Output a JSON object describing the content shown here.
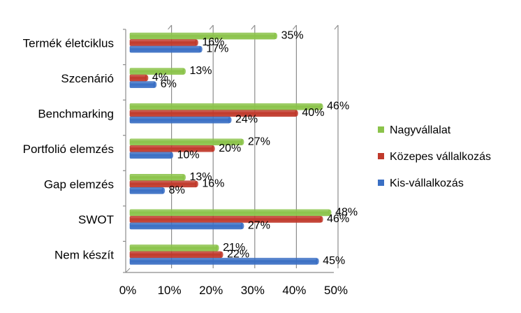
{
  "chart_data": {
    "type": "bar",
    "orientation": "horizontal",
    "categories": [
      "Termék életciklus",
      "Szcenárió",
      "Benchmarking",
      "Portfolió elemzés",
      "Gap elemzés",
      "SWOT",
      "Nem készít"
    ],
    "series": [
      {
        "name": "Nagyvállalat",
        "color": "#8bc34a",
        "values": [
          35,
          13,
          46,
          27,
          13,
          48,
          21
        ]
      },
      {
        "name": "Közepes vállalkozás",
        "color": "#c0392b",
        "values": [
          16,
          4,
          40,
          20,
          16,
          46,
          22
        ]
      },
      {
        "name": "Kis-vállalkozás",
        "color": "#3a6fc4",
        "values": [
          17,
          6,
          24,
          10,
          8,
          27,
          45
        ]
      }
    ],
    "value_suffix": "%",
    "xlim": [
      0,
      50
    ],
    "xticks": [
      "0%",
      "10%",
      "20%",
      "30%",
      "40%",
      "50%"
    ],
    "grid": true,
    "legend_position": "right"
  }
}
